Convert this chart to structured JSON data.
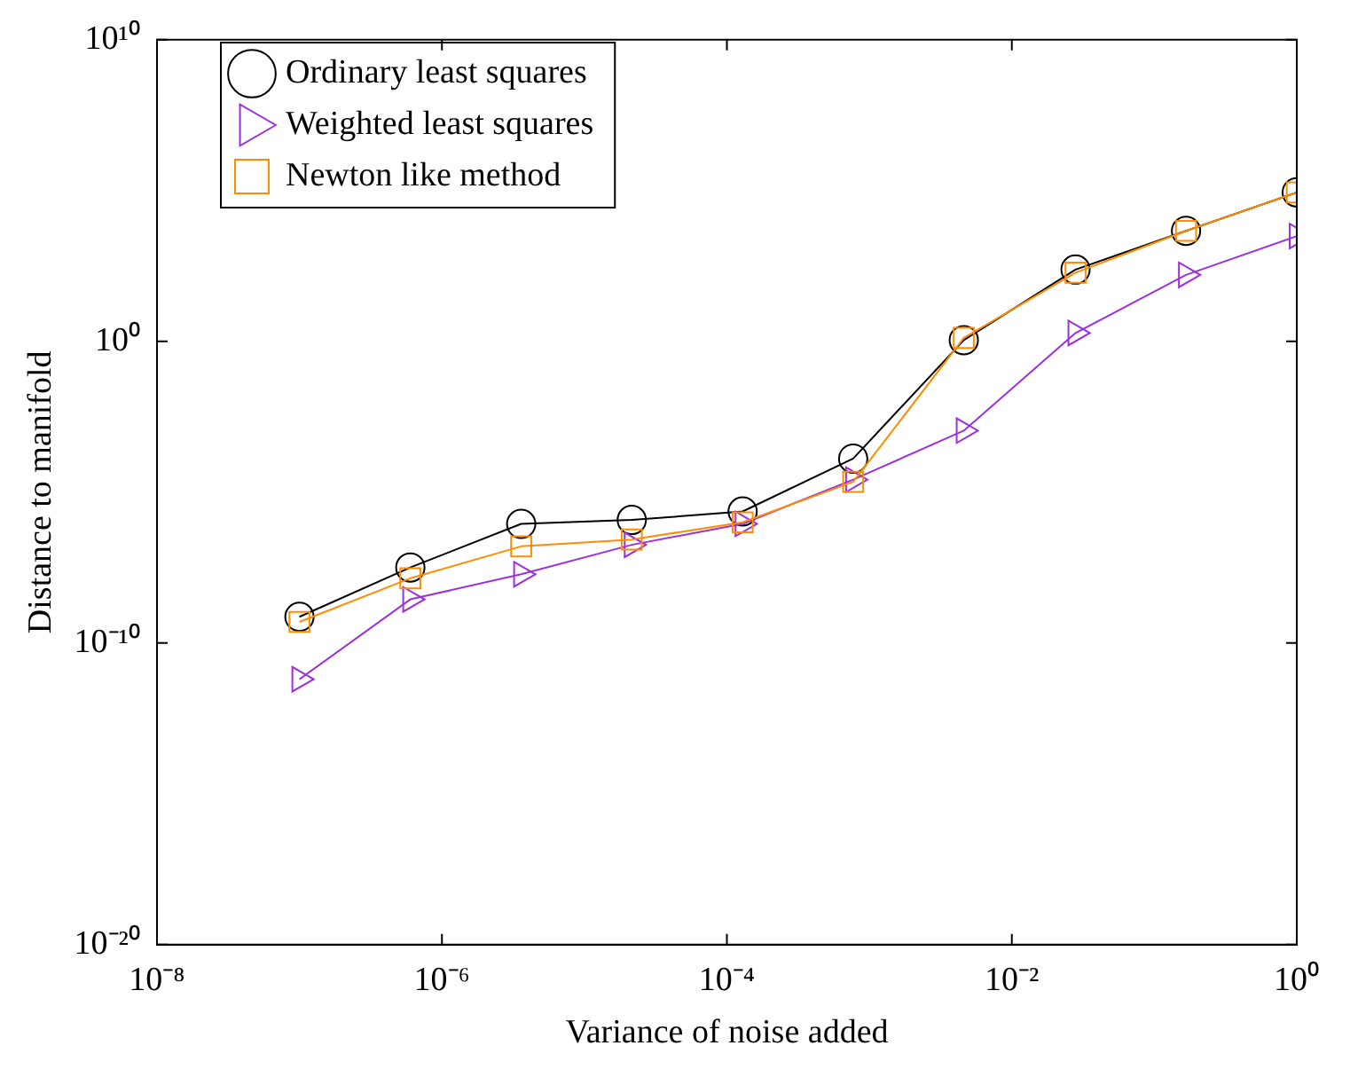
{
  "chart_data": {
    "type": "line",
    "xlabel": "Variance of noise added",
    "ylabel": "Distance to manifold",
    "log": "xy",
    "x": [
      1e-07,
      6e-07,
      3.6e-06,
      2.15e-05,
      0.000129,
      0.00077,
      0.0046,
      0.028,
      0.167,
      1
    ],
    "xlim": [
      1e-08,
      1
    ],
    "xticks": [
      {
        "value": 1e-08,
        "label": "10⁻⁸"
      },
      {
        "value": 1e-06,
        "label": "10⁻⁶"
      },
      {
        "value": 0.0001,
        "label": "10⁻⁴"
      },
      {
        "value": 0.01,
        "label": "10⁻²"
      },
      {
        "value": 1,
        "label": "10⁰"
      }
    ],
    "ylim": [
      1e-20,
      10000000000.0
    ],
    "yticks": [
      {
        "value": 1e-20,
        "label": "10⁻²⁰"
      },
      {
        "value": 1e-10,
        "label": "10⁻¹⁰"
      },
      {
        "value": 1,
        "label": "10⁰"
      },
      {
        "value": 10000000000.0,
        "label": "10¹⁰"
      }
    ],
    "grid": false,
    "legend": "top left",
    "line_style": "solid",
    "series": [
      {
        "name": "Ordinary least squares",
        "color": "#000000",
        "marker": "circle",
        "values": [
          7.4e-10,
          3.2e-08,
          8.9e-07,
          1.2e-06,
          2.3e-06,
          0.00013,
          1.1,
          240,
          4600,
          87000
        ]
      },
      {
        "name": "Weighted least squares",
        "color": "#9b30e0",
        "marker": "triangle",
        "values": [
          6.3e-12,
          2.8e-09,
          1.9e-08,
          1.8e-07,
          8.9e-07,
          2.6e-05,
          0.0011,
          1.9,
          160,
          3100
        ]
      },
      {
        "name": "Newton like method",
        "color": "#ff8c00",
        "marker": "square",
        "values": [
          5e-10,
          1.4e-08,
          1.6e-07,
          2.7e-07,
          1e-06,
          2.2e-05,
          1.3,
          190,
          4600,
          87000
        ]
      }
    ]
  }
}
